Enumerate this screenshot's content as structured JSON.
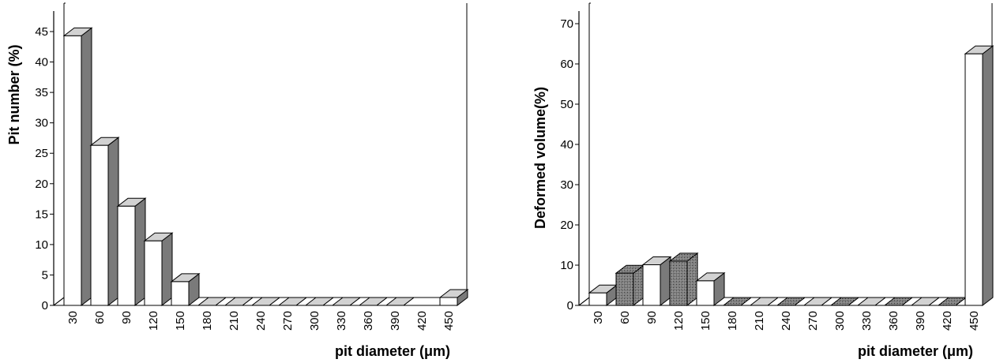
{
  "chart_data": [
    {
      "type": "bar",
      "title": "",
      "xlabel": "pit diameter (μm)",
      "ylabel": "Pit number (%)",
      "ylim": [
        0,
        45
      ],
      "yticks": [
        0,
        5,
        10,
        15,
        20,
        25,
        30,
        35,
        40,
        45
      ],
      "categories": [
        "30",
        "60",
        "90",
        "120",
        "150",
        "180",
        "210",
        "240",
        "270",
        "300",
        "330",
        "360",
        "390",
        "420",
        "450"
      ],
      "values": [
        44.3,
        26.3,
        16.3,
        10.6,
        3.9,
        0,
        0,
        0,
        0,
        0,
        0,
        0,
        0,
        null,
        1.3
      ],
      "bar_style": [
        "white",
        "white",
        "white",
        "white",
        "white",
        "gray",
        "gray",
        "gray",
        "gray",
        "gray",
        "gray",
        "gray",
        "gray",
        "none",
        "white"
      ],
      "grid": false,
      "legend": "none"
    },
    {
      "type": "bar",
      "title": "",
      "xlabel": "pit diameter (μm)",
      "ylabel": "Deformed volume(%)",
      "ylim": [
        0,
        70
      ],
      "yticks": [
        0,
        10,
        20,
        30,
        40,
        50,
        60,
        70
      ],
      "categories": [
        "30",
        "60",
        "90",
        "120",
        "150",
        "180",
        "210",
        "240",
        "270",
        "300",
        "330",
        "360",
        "390",
        "420",
        "450"
      ],
      "values": [
        3.1,
        8.0,
        10.1,
        11.0,
        6.1,
        0,
        0,
        0,
        0,
        0,
        0,
        0,
        0,
        0,
        62.5
      ],
      "bar_style": [
        "white",
        "hatched",
        "white",
        "hatched",
        "white",
        "hatched",
        "gray",
        "hatched",
        "gray",
        "hatched",
        "gray",
        "hatched",
        "gray",
        "hatched",
        "white"
      ],
      "grid": false,
      "legend": "none"
    }
  ]
}
